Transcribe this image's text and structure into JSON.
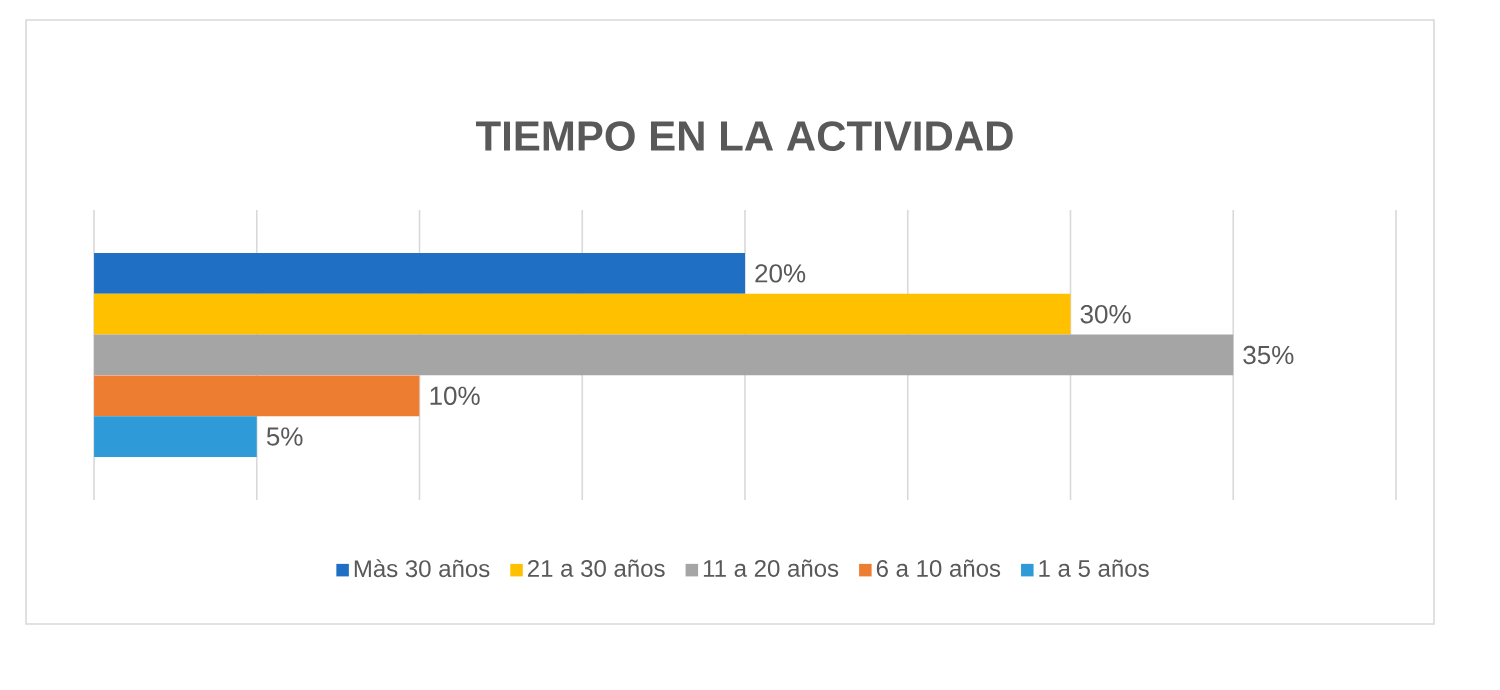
{
  "chart_data": {
    "type": "bar",
    "orientation": "horizontal",
    "title": "TIEMPO EN LA ACTIVIDAD",
    "categories": [
      null
    ],
    "series": [
      {
        "name": "Màs 30 años",
        "color": "#1f6fc4",
        "values": [
          20
        ],
        "value_labels": [
          "20%"
        ]
      },
      {
        "name": "21 a 30 años",
        "color": "#ffc000",
        "values": [
          30
        ],
        "value_labels": [
          "30%"
        ]
      },
      {
        "name": "11 a 20 años",
        "color": "#a5a5a5",
        "values": [
          35
        ],
        "value_labels": [
          "35%"
        ]
      },
      {
        "name": "6 a 10 años",
        "color": "#ed7d31",
        "values": [
          10
        ],
        "value_labels": [
          "10%"
        ]
      },
      {
        "name": "1 a 5 años",
        "color": "#2e9bd8",
        "values": [
          5
        ],
        "value_labels": [
          "5%"
        ]
      }
    ],
    "xlim": [
      0,
      40
    ],
    "xticks": [
      {
        "value": 0,
        "label": null
      },
      {
        "value": 5,
        "label": null
      },
      {
        "value": 10,
        "label": null
      },
      {
        "value": 15,
        "label": null
      },
      {
        "value": 20,
        "label": null
      },
      {
        "value": 25,
        "label": null
      },
      {
        "value": 30,
        "label": null
      },
      {
        "value": 35,
        "label": null
      },
      {
        "value": 40,
        "label": null
      }
    ],
    "grid": "x",
    "legend": "bottom"
  }
}
